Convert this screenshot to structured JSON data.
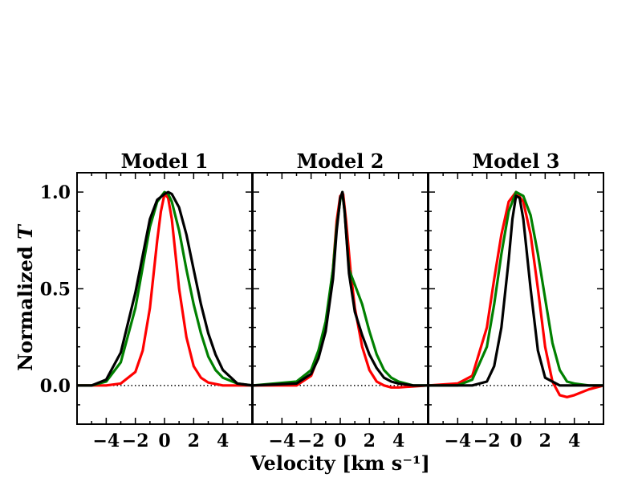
{
  "chart_data": {
    "type": "line",
    "xlabel": "Velocity [km s⁻¹]",
    "ylabel_prefix": "Normalized ",
    "ylabel_var": "T",
    "xlim": [
      -6,
      6
    ],
    "ylim": [
      -0.2,
      1.1
    ],
    "xticks": [
      -4,
      -2,
      0,
      2,
      4
    ],
    "xtick_labels": [
      "−4",
      "−2",
      "0",
      "2",
      "4"
    ],
    "yticks": [
      0.0,
      0.5,
      1.0
    ],
    "ytick_labels": [
      "0.0",
      "0.5",
      "1.0"
    ],
    "series_colors": {
      "red": "#ff0000",
      "green": "#008000",
      "black": "#000000"
    },
    "reference_line": {
      "y": 0.0,
      "style": "dotted"
    },
    "panels": [
      {
        "title": "Model 1",
        "series": [
          {
            "name": "red",
            "color": "#ff0000",
            "x": [
              -6,
              -4,
              -3,
              -2,
              -1.5,
              -1,
              -0.5,
              -0.25,
              0,
              0.25,
              0.5,
              1,
              1.5,
              2,
              2.5,
              3,
              4,
              6
            ],
            "y": [
              0,
              0,
              0.01,
              0.07,
              0.18,
              0.4,
              0.75,
              0.9,
              0.99,
              0.97,
              0.86,
              0.5,
              0.25,
              0.1,
              0.04,
              0.015,
              0,
              0
            ]
          },
          {
            "name": "green",
            "color": "#008000",
            "x": [
              -6,
              -5,
              -4,
              -3,
              -2,
              -1,
              -0.5,
              0,
              0.25,
              0.5,
              1,
              1.5,
              2,
              2.5,
              3,
              3.5,
              4,
              5,
              6
            ],
            "y": [
              0,
              0,
              0.02,
              0.12,
              0.4,
              0.82,
              0.95,
              1.0,
              0.99,
              0.95,
              0.8,
              0.6,
              0.42,
              0.27,
              0.15,
              0.08,
              0.04,
              0.01,
              0
            ]
          },
          {
            "name": "black",
            "color": "#000000",
            "x": [
              -6,
              -5,
              -4,
              -3,
              -2,
              -1,
              -0.5,
              0,
              0.25,
              0.5,
              1,
              1.5,
              2,
              2.5,
              3,
              3.5,
              4,
              5,
              6
            ],
            "y": [
              0,
              0,
              0.03,
              0.17,
              0.48,
              0.86,
              0.96,
              0.99,
              1.0,
              0.99,
              0.92,
              0.78,
              0.6,
              0.42,
              0.27,
              0.16,
              0.08,
              0.01,
              0
            ]
          }
        ]
      },
      {
        "title": "Model 2",
        "series": [
          {
            "name": "red",
            "color": "#ff0000",
            "x": [
              -6,
              -3,
              -2,
              -1.5,
              -1,
              -0.5,
              -0.25,
              0,
              0.2,
              0.4,
              0.7,
              1,
              1.5,
              2,
              2.5,
              3,
              3.5,
              4,
              6
            ],
            "y": [
              0,
              0,
              0.05,
              0.15,
              0.3,
              0.6,
              0.85,
              0.98,
              0.99,
              0.85,
              0.6,
              0.4,
              0.2,
              0.08,
              0.02,
              0,
              -0.01,
              -0.01,
              0
            ]
          },
          {
            "name": "green",
            "color": "#008000",
            "x": [
              -6,
              -3,
              -2,
              -1.5,
              -1,
              -0.5,
              -0.25,
              0,
              0.15,
              0.3,
              0.6,
              1,
              1.5,
              2,
              2.5,
              3,
              3.5,
              4,
              5,
              6
            ],
            "y": [
              0,
              0.02,
              0.08,
              0.18,
              0.33,
              0.6,
              0.82,
              0.96,
              1.0,
              0.9,
              0.6,
              0.52,
              0.42,
              0.28,
              0.16,
              0.08,
              0.04,
              0.02,
              0,
              0
            ]
          },
          {
            "name": "black",
            "color": "#000000",
            "x": [
              -6,
              -3,
              -2,
              -1.5,
              -1,
              -0.5,
              -0.25,
              0,
              0.15,
              0.3,
              0.6,
              1,
              1.5,
              2,
              2.5,
              3,
              3.5,
              4,
              5,
              6
            ],
            "y": [
              0,
              0.01,
              0.06,
              0.14,
              0.28,
              0.55,
              0.8,
              0.97,
              1.0,
              0.9,
              0.58,
              0.38,
              0.26,
              0.16,
              0.09,
              0.04,
              0.02,
              0.01,
              0,
              0
            ]
          }
        ]
      },
      {
        "title": "Model 3",
        "series": [
          {
            "name": "red",
            "color": "#ff0000",
            "x": [
              -6,
              -4,
              -3,
              -2,
              -1.5,
              -1,
              -0.5,
              0,
              0.5,
              1,
              1.5,
              2,
              2.5,
              3,
              3.5,
              4,
              5,
              6
            ],
            "y": [
              0,
              0.01,
              0.05,
              0.3,
              0.55,
              0.78,
              0.95,
              1.0,
              0.95,
              0.78,
              0.5,
              0.2,
              0.02,
              -0.05,
              -0.06,
              -0.05,
              -0.02,
              0
            ]
          },
          {
            "name": "green",
            "color": "#008000",
            "x": [
              -6,
              -4,
              -3,
              -2,
              -1.5,
              -1,
              -0.5,
              0,
              0.5,
              1,
              1.5,
              2,
              2.5,
              3,
              3.5,
              4,
              5,
              6
            ],
            "y": [
              0,
              0,
              0.03,
              0.2,
              0.42,
              0.68,
              0.9,
              1.0,
              0.98,
              0.88,
              0.68,
              0.45,
              0.22,
              0.08,
              0.02,
              0.01,
              0,
              0
            ]
          },
          {
            "name": "black",
            "color": "#000000",
            "x": [
              -6,
              -3,
              -2,
              -1.5,
              -1,
              -0.5,
              -0.25,
              0,
              0.25,
              0.5,
              1,
              1.5,
              2,
              3,
              6
            ],
            "y": [
              0,
              0,
              0.02,
              0.1,
              0.3,
              0.65,
              0.86,
              0.98,
              0.97,
              0.86,
              0.5,
              0.18,
              0.04,
              0,
              0
            ]
          }
        ]
      }
    ]
  }
}
